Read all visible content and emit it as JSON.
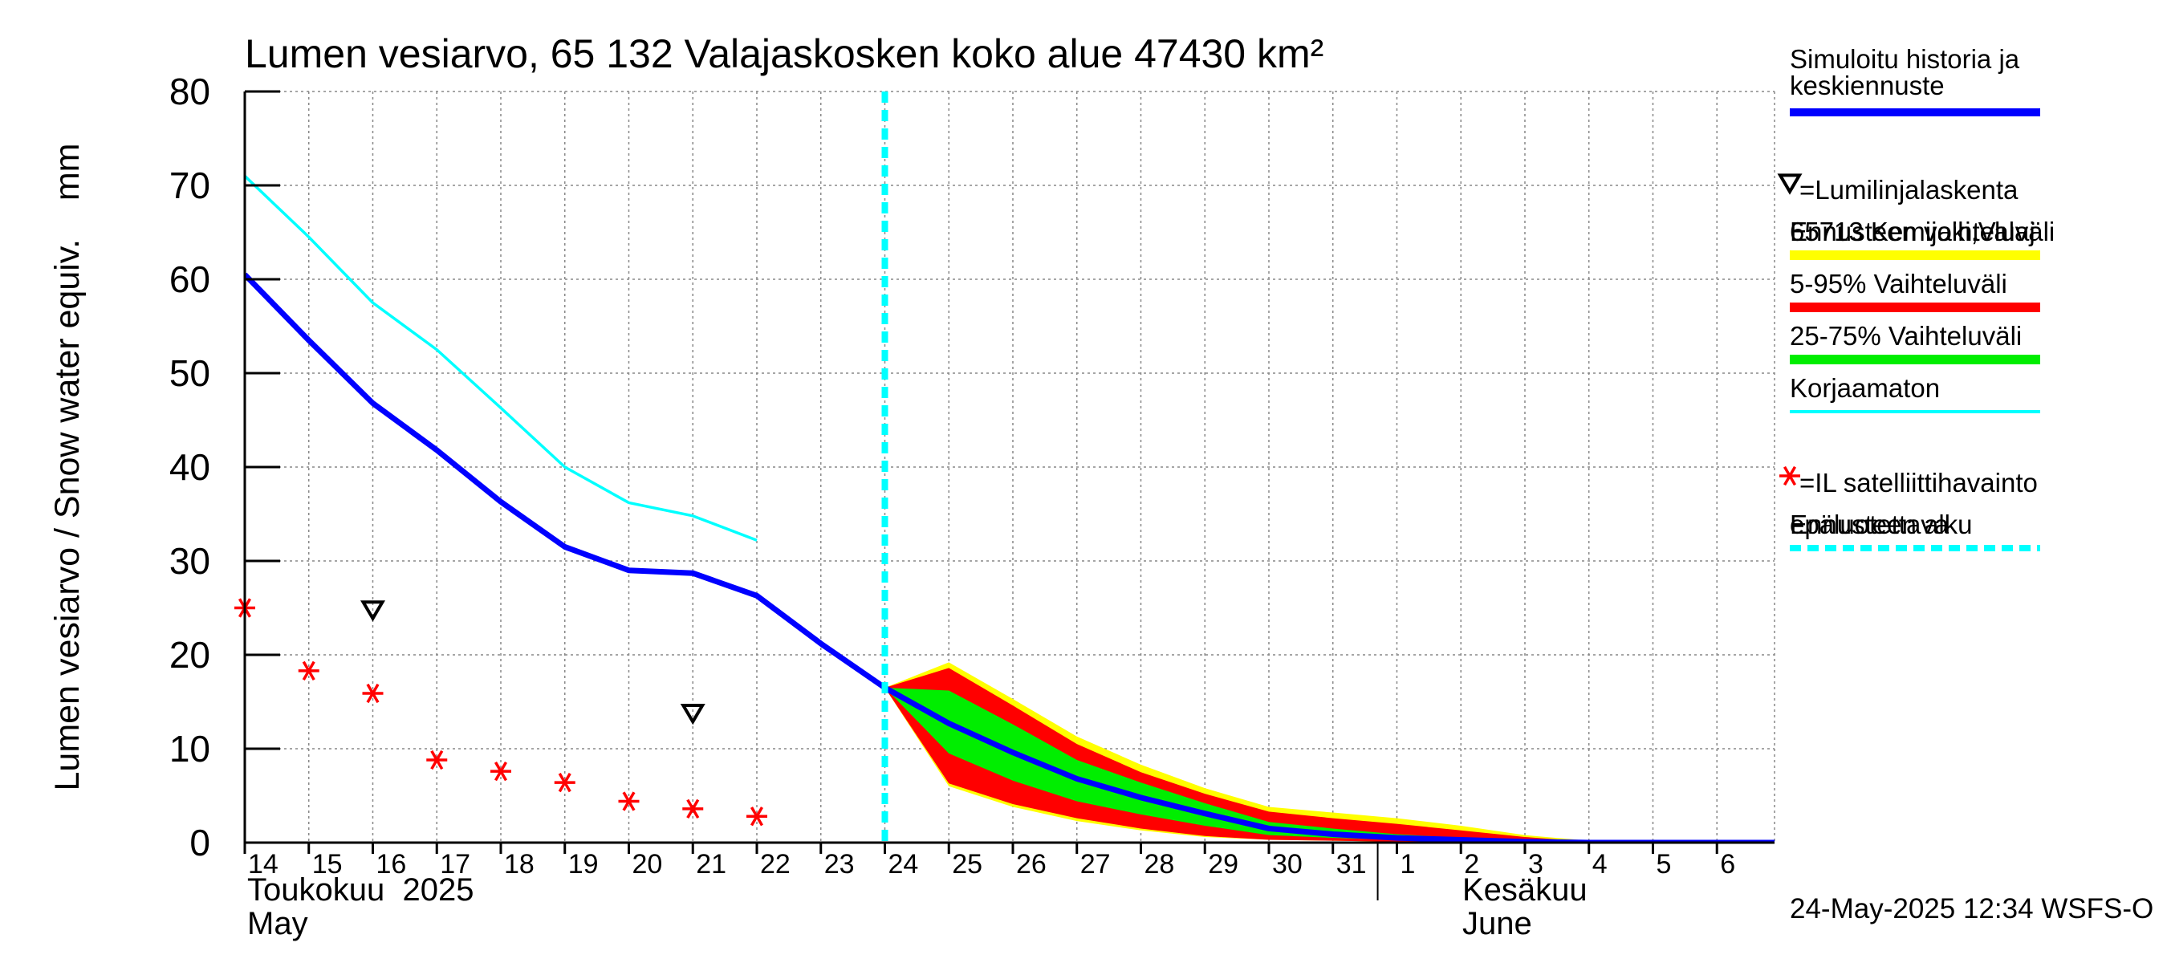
{
  "chart_data": {
    "type": "area",
    "title": "Lumen vesiarvo, 65 132 Valajaskosken koko alue 47430 km²",
    "ylabel": "Lumen vesiarvo / Snow water equiv.    mm",
    "ylim": [
      0,
      80
    ],
    "yticks": [
      0,
      10,
      20,
      30,
      40,
      50,
      60,
      70,
      80
    ],
    "grid": true,
    "legend_position": "right",
    "x_tick_labels": [
      {
        "day": 14,
        "label": "14"
      },
      {
        "day": 15,
        "label": "15"
      },
      {
        "day": 16,
        "label": "16"
      },
      {
        "day": 17,
        "label": "17"
      },
      {
        "day": 18,
        "label": "18"
      },
      {
        "day": 19,
        "label": "19"
      },
      {
        "day": 20,
        "label": "20"
      },
      {
        "day": 21,
        "label": "21"
      },
      {
        "day": 22,
        "label": "22"
      },
      {
        "day": 23,
        "label": "23"
      },
      {
        "day": 24,
        "label": "24"
      },
      {
        "day": 25,
        "label": "25"
      },
      {
        "day": 26,
        "label": "26"
      },
      {
        "day": 27,
        "label": "27"
      },
      {
        "day": 28,
        "label": "28"
      },
      {
        "day": 29,
        "label": "29"
      },
      {
        "day": 30,
        "label": "30"
      },
      {
        "day": 31,
        "label": "31"
      },
      {
        "day": 32,
        "label": "1"
      },
      {
        "day": 33,
        "label": "2"
      },
      {
        "day": 34,
        "label": "3"
      },
      {
        "day": 35,
        "label": "4"
      },
      {
        "day": 36,
        "label": "5"
      },
      {
        "day": 37,
        "label": "6"
      }
    ],
    "x_range_days_of_may": [
      14,
      37.9
    ],
    "month_labels": {
      "may_fi": "Toukokuu  2025",
      "may_en": "May",
      "june_fi": "Kesäkuu",
      "june_en": "June"
    },
    "forecast_start_day": 24,
    "series": [
      {
        "name": "Simuloitu historia ja keskiennuste",
        "color": "#0000ff",
        "points": [
          [
            14,
            60.5
          ],
          [
            15,
            53.5
          ],
          [
            16,
            46.8
          ],
          [
            17,
            41.8
          ],
          [
            18,
            36.3
          ],
          [
            19,
            31.5
          ],
          [
            20,
            29
          ],
          [
            21,
            28.7
          ],
          [
            22,
            26.3
          ],
          [
            23,
            21.2
          ],
          [
            24,
            16.5
          ],
          [
            25,
            12.7
          ],
          [
            26,
            9.6
          ],
          [
            27,
            6.8
          ],
          [
            28,
            4.8
          ],
          [
            29,
            3.1
          ],
          [
            30,
            1.5
          ],
          [
            31,
            0.9
          ],
          [
            32,
            0.5
          ],
          [
            33,
            0.3
          ],
          [
            34,
            0.1
          ],
          [
            35,
            0
          ],
          [
            36,
            0
          ],
          [
            37,
            0
          ],
          [
            37.9,
            0
          ]
        ]
      },
      {
        "name": "Korjaamaton",
        "color": "#00ffff",
        "points": [
          [
            14,
            71
          ],
          [
            15,
            64.5
          ],
          [
            16,
            57.5
          ],
          [
            17,
            52.5
          ],
          [
            18,
            46.3
          ],
          [
            19,
            40
          ],
          [
            20,
            36.2
          ],
          [
            21,
            34.8
          ],
          [
            22,
            32.2
          ]
        ]
      }
    ],
    "bands": [
      {
        "name": "Ennusteen vaihteluväli",
        "color": "#ffff00",
        "points": [
          [
            24,
            16.5,
            16.5
          ],
          [
            25,
            6,
            19.2
          ],
          [
            26,
            3.8,
            15.3
          ],
          [
            27,
            2.3,
            11.3
          ],
          [
            28,
            1.3,
            8.3
          ],
          [
            29,
            0.6,
            5.8
          ],
          [
            30,
            0.3,
            3.8
          ],
          [
            31,
            0.2,
            3.2
          ],
          [
            32,
            0.1,
            2.6
          ],
          [
            33,
            0,
            1.8
          ],
          [
            34,
            0,
            0.8
          ],
          [
            35,
            0,
            0.2
          ],
          [
            36,
            0,
            0
          ],
          [
            37.9,
            0,
            0
          ]
        ]
      },
      {
        "name": "5-95% Vaihteluväli",
        "color": "#ff0000",
        "points": [
          [
            24,
            16.5,
            16.5
          ],
          [
            25,
            6.3,
            18.6
          ],
          [
            26,
            4.1,
            14.6
          ],
          [
            27,
            2.6,
            10.5
          ],
          [
            28,
            1.5,
            7.5
          ],
          [
            29,
            0.7,
            5.2
          ],
          [
            30,
            0.3,
            3.3
          ],
          [
            31,
            0.2,
            2.6
          ],
          [
            32,
            0.1,
            2
          ],
          [
            33,
            0,
            1.3
          ],
          [
            34,
            0,
            0.6
          ],
          [
            35,
            0,
            0.1
          ],
          [
            36,
            0,
            0
          ],
          [
            37.9,
            0,
            0
          ]
        ]
      },
      {
        "name": "25-75% Vaihteluväli",
        "color": "#00ee00",
        "points": [
          [
            24,
            16.5,
            16.5
          ],
          [
            25,
            9.5,
            16.2
          ],
          [
            26,
            6.6,
            12.6
          ],
          [
            27,
            4.4,
            8.8
          ],
          [
            28,
            3,
            6.4
          ],
          [
            29,
            1.8,
            4.2
          ],
          [
            30,
            0.8,
            2.2
          ],
          [
            31,
            0.5,
            1.5
          ],
          [
            32,
            0.3,
            0.9
          ],
          [
            33,
            0.1,
            0.5
          ],
          [
            34,
            0,
            0.2
          ],
          [
            35,
            0,
            0
          ],
          [
            37.9,
            0,
            0
          ]
        ]
      }
    ],
    "markers": {
      "lumilinja": {
        "name": "=Lumilinjalaskenta",
        "subname": "65713 Kemijoki,Valaj",
        "color": "#000000",
        "points": [
          [
            16,
            24.8
          ],
          [
            21,
            13.8
          ]
        ]
      },
      "satellite": {
        "name": "=IL satelliittihavainto",
        "subname": "epäluotettava",
        "color": "#ff0000",
        "points": [
          [
            14,
            25
          ],
          [
            15,
            18.3
          ],
          [
            16,
            15.9
          ],
          [
            17,
            8.8
          ],
          [
            18,
            7.6
          ],
          [
            19,
            6.4
          ],
          [
            20,
            4.4
          ],
          [
            21,
            3.6
          ],
          [
            22,
            2.8
          ]
        ]
      }
    },
    "legend": [
      {
        "label": "Simuloitu historia ja",
        "label2": "keskiennuste",
        "kind": "line",
        "color": "#0000ff"
      },
      {
        "label": "=Lumilinjalaskenta",
        "label2": "65713 Kemijoki,Valaj",
        "kind": "triangle",
        "color": "#000000"
      },
      {
        "label": "Ennusteen vaihteluväli",
        "kind": "line",
        "color": "#ffff00"
      },
      {
        "label": "5-95% Vaihteluväli",
        "kind": "line",
        "color": "#ff0000"
      },
      {
        "label": "25-75% Vaihteluväli",
        "kind": "line",
        "color": "#00ee00"
      },
      {
        "label": "Korjaamaton",
        "kind": "thin",
        "color": "#00ffff"
      },
      {
        "label": "=IL satelliittihavainto",
        "label2": "epäluotettava",
        "kind": "star",
        "color": "#ff0000"
      },
      {
        "label": "Ennusteen alku",
        "kind": "dashed",
        "color": "#00ffff"
      }
    ],
    "footer": "24-May-2025 12:34 WSFS-O"
  }
}
